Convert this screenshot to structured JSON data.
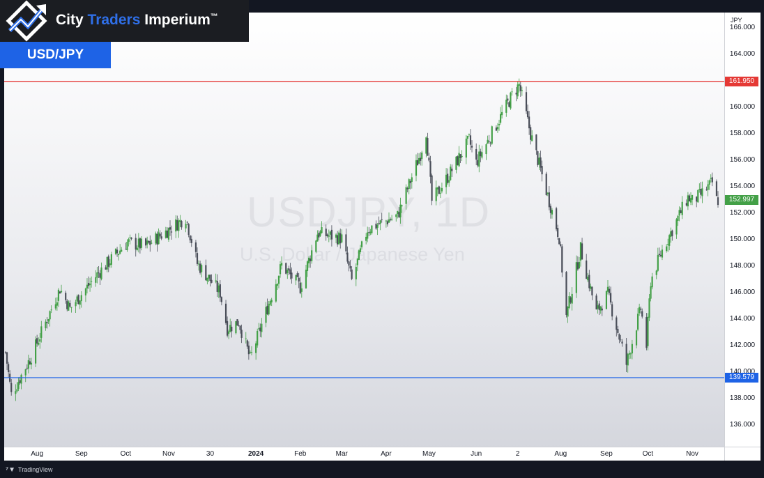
{
  "brand": {
    "name_part1": "City",
    "name_part2": "Traders",
    "name_part3": "Imperium",
    "trademark": "™",
    "pair_label": "USD/JPY"
  },
  "watermark": {
    "symbol": "USDJPY, 1D",
    "description": "U.S. Dollar / Japanese Yen"
  },
  "footer": {
    "platform": "TradingView",
    "platform_icon": "tradingview-logo-icon"
  },
  "colors": {
    "up": "#43a047",
    "down": "#4a4e59",
    "resistance": "#e53935",
    "support": "#1e63e6",
    "last_price": "#43a047"
  },
  "chart_data": {
    "type": "candlestick",
    "currency": "JPY",
    "ylim": [
      134.0,
      167.0
    ],
    "y_ticks": [
      "136.000",
      "138.000",
      "140.000",
      "142.000",
      "144.000",
      "146.000",
      "148.000",
      "150.000",
      "152.000",
      "154.000",
      "156.000",
      "158.000",
      "160.000",
      "162.000",
      "164.000",
      "166.000"
    ],
    "x_ticks": [
      {
        "label": "Aug",
        "date": "2023-08-01"
      },
      {
        "label": "Sep",
        "date": "2023-09-01"
      },
      {
        "label": "Oct",
        "date": "2023-10-02"
      },
      {
        "label": "Nov",
        "date": "2023-11-01"
      },
      {
        "label": "30",
        "date": "2023-11-30"
      },
      {
        "label": "2024",
        "date": "2024-01-01",
        "bold": true
      },
      {
        "label": "Feb",
        "date": "2024-02-01"
      },
      {
        "label": "Mar",
        "date": "2024-03-01"
      },
      {
        "label": "Apr",
        "date": "2024-04-01"
      },
      {
        "label": "May",
        "date": "2024-05-01"
      },
      {
        "label": "Jun",
        "date": "2024-06-03"
      },
      {
        "label": "2",
        "date": "2024-07-02"
      },
      {
        "label": "Aug",
        "date": "2024-08-01"
      },
      {
        "label": "Sep",
        "date": "2024-09-02"
      },
      {
        "label": "Oct",
        "date": "2024-10-01"
      },
      {
        "label": "Nov",
        "date": "2024-11-01"
      }
    ],
    "x_range": [
      "2023-07-10",
      "2024-11-19"
    ],
    "horizontal_lines": [
      {
        "value": 161.95,
        "label": "161.950",
        "color": "#e53935"
      },
      {
        "value": 139.579,
        "label": "139.579",
        "color": "#1e63e6"
      }
    ],
    "last_price": {
      "value": 152.997,
      "label": "152.997"
    },
    "trend": [
      {
        "date": "2023-07-10",
        "price": 141.5
      },
      {
        "date": "2023-07-14",
        "price": 138.3
      },
      {
        "date": "2023-07-28",
        "price": 141.2
      },
      {
        "date": "2023-08-17",
        "price": 146.3
      },
      {
        "date": "2023-08-24",
        "price": 144.8
      },
      {
        "date": "2023-09-13",
        "price": 147.5
      },
      {
        "date": "2023-10-03",
        "price": 149.8
      },
      {
        "date": "2023-10-16",
        "price": 149.5
      },
      {
        "date": "2023-11-13",
        "price": 151.7
      },
      {
        "date": "2023-11-21",
        "price": 148.2
      },
      {
        "date": "2023-12-07",
        "price": 146.0
      },
      {
        "date": "2023-12-12",
        "price": 143.3
      },
      {
        "date": "2023-12-20",
        "price": 143.8
      },
      {
        "date": "2023-12-28",
        "price": 141.0
      },
      {
        "date": "2024-01-19",
        "price": 148.1
      },
      {
        "date": "2024-02-01",
        "price": 146.4
      },
      {
        "date": "2024-02-13",
        "price": 150.5
      },
      {
        "date": "2024-03-01",
        "price": 150.1
      },
      {
        "date": "2024-03-08",
        "price": 146.9
      },
      {
        "date": "2024-03-19",
        "price": 150.8
      },
      {
        "date": "2024-04-09",
        "price": 151.8
      },
      {
        "date": "2024-04-25",
        "price": 156.5
      },
      {
        "date": "2024-04-29",
        "price": 158.2
      },
      {
        "date": "2024-05-03",
        "price": 152.9
      },
      {
        "date": "2024-05-15",
        "price": 154.9
      },
      {
        "date": "2024-05-29",
        "price": 157.5
      },
      {
        "date": "2024-06-03",
        "price": 155.8
      },
      {
        "date": "2024-06-28",
        "price": 160.9
      },
      {
        "date": "2024-07-03",
        "price": 161.7
      },
      {
        "date": "2024-07-11",
        "price": 158.0
      },
      {
        "date": "2024-07-31",
        "price": 150.2
      },
      {
        "date": "2024-08-05",
        "price": 144.2
      },
      {
        "date": "2024-08-15",
        "price": 149.3
      },
      {
        "date": "2024-08-26",
        "price": 144.5
      },
      {
        "date": "2024-09-03",
        "price": 145.9
      },
      {
        "date": "2024-09-16",
        "price": 140.6
      },
      {
        "date": "2024-09-26",
        "price": 144.8
      },
      {
        "date": "2024-09-30",
        "price": 142.0
      },
      {
        "date": "2024-10-03",
        "price": 146.9
      },
      {
        "date": "2024-10-11",
        "price": 149.2
      },
      {
        "date": "2024-10-29",
        "price": 153.2
      },
      {
        "date": "2024-11-01",
        "price": 152.9
      },
      {
        "date": "2024-11-07",
        "price": 153.4
      },
      {
        "date": "2024-11-15",
        "price": 154.3
      },
      {
        "date": "2024-11-18",
        "price": 153.0
      }
    ]
  }
}
